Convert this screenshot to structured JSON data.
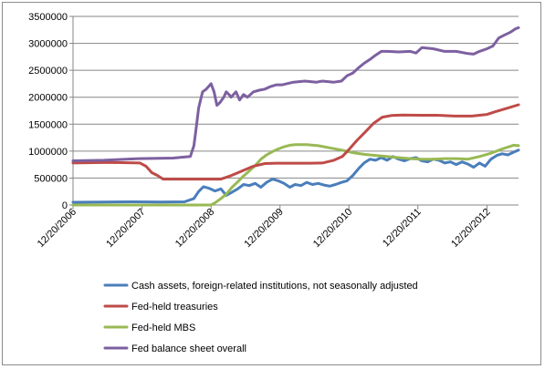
{
  "chart_data": {
    "type": "line",
    "title": "",
    "xlabel": "",
    "ylabel": "",
    "ylim": [
      0,
      3500000
    ],
    "yticks": [
      0,
      500000,
      1000000,
      1500000,
      2000000,
      2500000,
      3000000,
      3500000
    ],
    "ytick_labels": [
      "0",
      "500000",
      "1000000",
      "1500000",
      "2000000",
      "2500000",
      "3000000",
      "3500000"
    ],
    "xlim": [
      "2006-12-20",
      "2013-06-05"
    ],
    "xticks": [
      "2006-12-20",
      "2007-12-20",
      "2008-12-20",
      "2009-12-20",
      "2010-12-20",
      "2011-12-20",
      "2012-12-20"
    ],
    "xtick_labels": [
      "12/20/2006",
      "12/20/2007",
      "12/20/2008",
      "12/20/2009",
      "12/20/2010",
      "12/20/2011",
      "12/20/2012"
    ],
    "grid": {
      "horizontal": true,
      "vertical": false
    },
    "legend": "bottom",
    "series": [
      {
        "name": "Cash assets, foreign-related institutions, not seasonally adjusted",
        "color": "#4a7ebb",
        "points": [
          [
            "2006-12-20",
            50000
          ],
          [
            "2007-06-01",
            55000
          ],
          [
            "2007-11-01",
            60000
          ],
          [
            "2008-04-01",
            55000
          ],
          [
            "2008-08-01",
            60000
          ],
          [
            "2008-09-20",
            120000
          ],
          [
            "2008-10-15",
            250000
          ],
          [
            "2008-11-10",
            340000
          ],
          [
            "2008-12-10",
            310000
          ],
          [
            "2009-01-10",
            260000
          ],
          [
            "2009-02-10",
            300000
          ],
          [
            "2009-03-10",
            180000
          ],
          [
            "2009-04-01",
            220000
          ],
          [
            "2009-05-10",
            300000
          ],
          [
            "2009-06-10",
            380000
          ],
          [
            "2009-07-10",
            360000
          ],
          [
            "2009-08-10",
            400000
          ],
          [
            "2009-09-10",
            330000
          ],
          [
            "2009-10-10",
            420000
          ],
          [
            "2009-11-10",
            480000
          ],
          [
            "2009-12-10",
            450000
          ],
          [
            "2010-01-10",
            400000
          ],
          [
            "2010-02-10",
            330000
          ],
          [
            "2010-03-10",
            380000
          ],
          [
            "2010-04-10",
            360000
          ],
          [
            "2010-05-10",
            420000
          ],
          [
            "2010-06-10",
            380000
          ],
          [
            "2010-07-10",
            400000
          ],
          [
            "2010-08-10",
            370000
          ],
          [
            "2010-09-10",
            350000
          ],
          [
            "2010-10-10",
            380000
          ],
          [
            "2010-11-10",
            420000
          ],
          [
            "2010-12-10",
            450000
          ],
          [
            "2011-01-10",
            550000
          ],
          [
            "2011-02-10",
            680000
          ],
          [
            "2011-03-10",
            780000
          ],
          [
            "2011-04-10",
            850000
          ],
          [
            "2011-05-10",
            830000
          ],
          [
            "2011-06-10",
            880000
          ],
          [
            "2011-07-10",
            830000
          ],
          [
            "2011-08-10",
            900000
          ],
          [
            "2011-09-10",
            850000
          ],
          [
            "2011-10-10",
            820000
          ],
          [
            "2011-11-10",
            860000
          ],
          [
            "2011-12-10",
            880000
          ],
          [
            "2012-01-10",
            820000
          ],
          [
            "2012-02-10",
            800000
          ],
          [
            "2012-03-10",
            850000
          ],
          [
            "2012-04-10",
            830000
          ],
          [
            "2012-05-10",
            780000
          ],
          [
            "2012-06-10",
            800000
          ],
          [
            "2012-07-10",
            750000
          ],
          [
            "2012-08-10",
            800000
          ],
          [
            "2012-09-10",
            760000
          ],
          [
            "2012-10-10",
            700000
          ],
          [
            "2012-11-10",
            780000
          ],
          [
            "2012-12-10",
            720000
          ],
          [
            "2013-01-10",
            850000
          ],
          [
            "2013-02-10",
            920000
          ],
          [
            "2013-03-10",
            950000
          ],
          [
            "2013-04-10",
            930000
          ],
          [
            "2013-05-10",
            980000
          ],
          [
            "2013-06-05",
            1020000
          ]
        ]
      },
      {
        "name": "Fed-held treasuries",
        "color": "#be4b48",
        "points": [
          [
            "2006-12-20",
            780000
          ],
          [
            "2007-07-01",
            790000
          ],
          [
            "2007-12-10",
            780000
          ],
          [
            "2008-01-10",
            720000
          ],
          [
            "2008-02-10",
            600000
          ],
          [
            "2008-03-10",
            550000
          ],
          [
            "2008-04-10",
            480000
          ],
          [
            "2008-06-01",
            480000
          ],
          [
            "2008-10-01",
            480000
          ],
          [
            "2009-01-01",
            480000
          ],
          [
            "2009-02-10",
            480000
          ],
          [
            "2009-04-01",
            540000
          ],
          [
            "2009-06-01",
            630000
          ],
          [
            "2009-08-01",
            720000
          ],
          [
            "2009-10-01",
            770000
          ],
          [
            "2009-12-01",
            776000
          ],
          [
            "2010-03-01",
            776000
          ],
          [
            "2010-06-01",
            776000
          ],
          [
            "2010-08-01",
            780000
          ],
          [
            "2010-10-01",
            830000
          ],
          [
            "2010-11-15",
            900000
          ],
          [
            "2010-12-20",
            1030000
          ],
          [
            "2011-02-01",
            1200000
          ],
          [
            "2011-03-15",
            1350000
          ],
          [
            "2011-05-01",
            1520000
          ],
          [
            "2011-06-15",
            1630000
          ],
          [
            "2011-08-01",
            1660000
          ],
          [
            "2011-10-01",
            1670000
          ],
          [
            "2012-01-01",
            1665000
          ],
          [
            "2012-04-01",
            1665000
          ],
          [
            "2012-07-01",
            1650000
          ],
          [
            "2012-10-01",
            1650000
          ],
          [
            "2012-12-20",
            1680000
          ],
          [
            "2013-02-01",
            1730000
          ],
          [
            "2013-04-01",
            1790000
          ],
          [
            "2013-06-05",
            1860000
          ]
        ]
      },
      {
        "name": "Fed-held MBS",
        "color": "#98b954",
        "points": [
          [
            "2006-12-20",
            0
          ],
          [
            "2008-12-20",
            0
          ],
          [
            "2009-01-10",
            40000
          ],
          [
            "2009-02-10",
            120000
          ],
          [
            "2009-03-10",
            200000
          ],
          [
            "2009-04-10",
            330000
          ],
          [
            "2009-05-10",
            430000
          ],
          [
            "2009-06-10",
            540000
          ],
          [
            "2009-07-10",
            630000
          ],
          [
            "2009-08-10",
            730000
          ],
          [
            "2009-09-10",
            850000
          ],
          [
            "2009-10-10",
            930000
          ],
          [
            "2009-11-10",
            990000
          ],
          [
            "2009-12-10",
            1040000
          ],
          [
            "2010-01-10",
            1080000
          ],
          [
            "2010-02-10",
            1110000
          ],
          [
            "2010-03-10",
            1120000
          ],
          [
            "2010-05-10",
            1120000
          ],
          [
            "2010-07-10",
            1100000
          ],
          [
            "2010-09-10",
            1060000
          ],
          [
            "2010-11-10",
            1020000
          ],
          [
            "2011-01-10",
            970000
          ],
          [
            "2011-03-10",
            940000
          ],
          [
            "2011-05-10",
            920000
          ],
          [
            "2011-07-10",
            900000
          ],
          [
            "2011-09-10",
            880000
          ],
          [
            "2011-11-10",
            860000
          ],
          [
            "2012-01-10",
            850000
          ],
          [
            "2012-03-10",
            850000
          ],
          [
            "2012-05-10",
            860000
          ],
          [
            "2012-07-10",
            860000
          ],
          [
            "2012-09-10",
            850000
          ],
          [
            "2012-11-10",
            900000
          ],
          [
            "2013-01-10",
            960000
          ],
          [
            "2013-03-10",
            1040000
          ],
          [
            "2013-05-10",
            1110000
          ],
          [
            "2013-06-05",
            1100000
          ]
        ]
      },
      {
        "name": "Fed balance sheet overall",
        "color": "#7d60a0",
        "points": [
          [
            "2006-12-20",
            820000
          ],
          [
            "2007-06-01",
            830000
          ],
          [
            "2007-12-01",
            860000
          ],
          [
            "2008-06-01",
            870000
          ],
          [
            "2008-09-01",
            900000
          ],
          [
            "2008-09-20",
            1100000
          ],
          [
            "2008-10-01",
            1400000
          ],
          [
            "2008-10-15",
            1800000
          ],
          [
            "2008-11-05",
            2100000
          ],
          [
            "2008-11-25",
            2150000
          ],
          [
            "2008-12-20",
            2250000
          ],
          [
            "2009-01-05",
            2100000
          ],
          [
            "2009-01-20",
            1850000
          ],
          [
            "2009-02-05",
            1900000
          ],
          [
            "2009-02-25",
            2000000
          ],
          [
            "2009-03-10",
            2100000
          ],
          [
            "2009-03-25",
            2050000
          ],
          [
            "2009-04-05",
            2000000
          ],
          [
            "2009-05-01",
            2100000
          ],
          [
            "2009-05-20",
            1950000
          ],
          [
            "2009-06-10",
            2050000
          ],
          [
            "2009-07-01",
            2000000
          ],
          [
            "2009-08-01",
            2100000
          ],
          [
            "2009-09-01",
            2130000
          ],
          [
            "2009-10-01",
            2150000
          ],
          [
            "2009-11-01",
            2200000
          ],
          [
            "2009-12-01",
            2230000
          ],
          [
            "2010-01-01",
            2230000
          ],
          [
            "2010-03-01",
            2280000
          ],
          [
            "2010-05-01",
            2300000
          ],
          [
            "2010-07-01",
            2280000
          ],
          [
            "2010-08-01",
            2300000
          ],
          [
            "2010-09-01",
            2290000
          ],
          [
            "2010-10-01",
            2280000
          ],
          [
            "2010-11-10",
            2300000
          ],
          [
            "2010-12-10",
            2400000
          ],
          [
            "2011-01-10",
            2450000
          ],
          [
            "2011-02-10",
            2550000
          ],
          [
            "2011-03-10",
            2630000
          ],
          [
            "2011-04-10",
            2700000
          ],
          [
            "2011-05-10",
            2780000
          ],
          [
            "2011-06-10",
            2850000
          ],
          [
            "2011-07-10",
            2850000
          ],
          [
            "2011-09-10",
            2840000
          ],
          [
            "2011-11-10",
            2850000
          ],
          [
            "2011-12-10",
            2820000
          ],
          [
            "2012-01-10",
            2920000
          ],
          [
            "2012-03-10",
            2900000
          ],
          [
            "2012-05-10",
            2850000
          ],
          [
            "2012-07-10",
            2850000
          ],
          [
            "2012-09-10",
            2810000
          ],
          [
            "2012-10-10",
            2800000
          ],
          [
            "2012-11-10",
            2850000
          ],
          [
            "2012-12-20",
            2900000
          ],
          [
            "2013-01-20",
            2950000
          ],
          [
            "2013-02-20",
            3100000
          ],
          [
            "2013-03-20",
            3150000
          ],
          [
            "2013-04-20",
            3200000
          ],
          [
            "2013-05-20",
            3270000
          ],
          [
            "2013-06-05",
            3290000
          ]
        ]
      }
    ]
  }
}
